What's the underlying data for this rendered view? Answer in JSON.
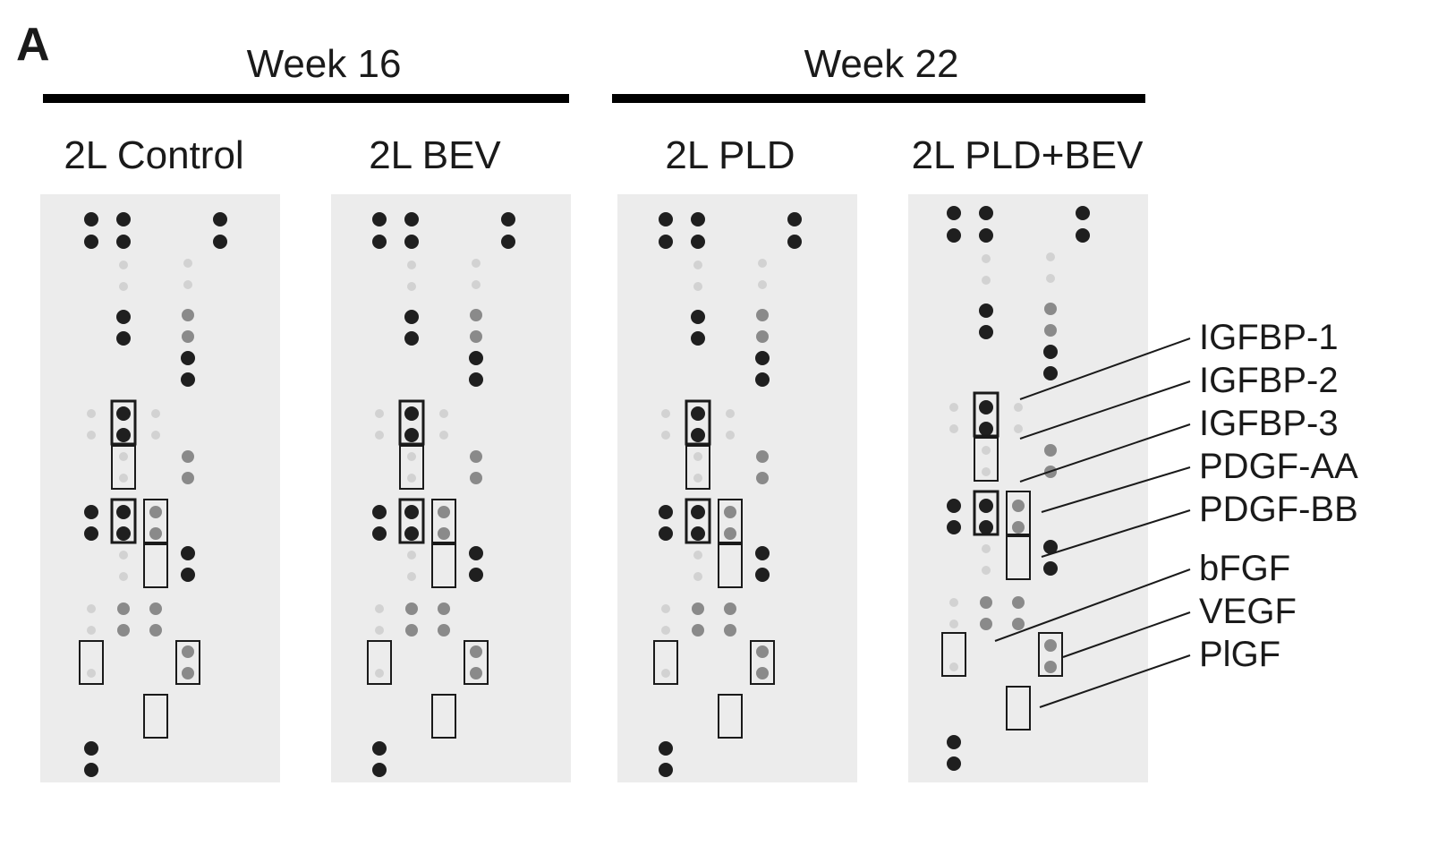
{
  "panel_label": "A",
  "groups": [
    {
      "label": "Week 16"
    },
    {
      "label": "Week 22"
    }
  ],
  "membranes": [
    {
      "label": "2L Control"
    },
    {
      "label": "2L BEV"
    },
    {
      "label": "2L PLD"
    },
    {
      "label": "2L PLD+BEV"
    }
  ],
  "annotations": [
    "IGFBP-1",
    "IGFBP-2",
    "IGFBP-3",
    "PDGF-AA",
    "PDGF-BB",
    "bFGF",
    "VEGF",
    "PlGF"
  ],
  "colors": {
    "membrane": "#ececec",
    "strong_spot": "#1f1f1f",
    "medium_spot": "#8a8a8a",
    "faint_spot": "#d2d2d2",
    "box": "#1a1a1a"
  }
}
